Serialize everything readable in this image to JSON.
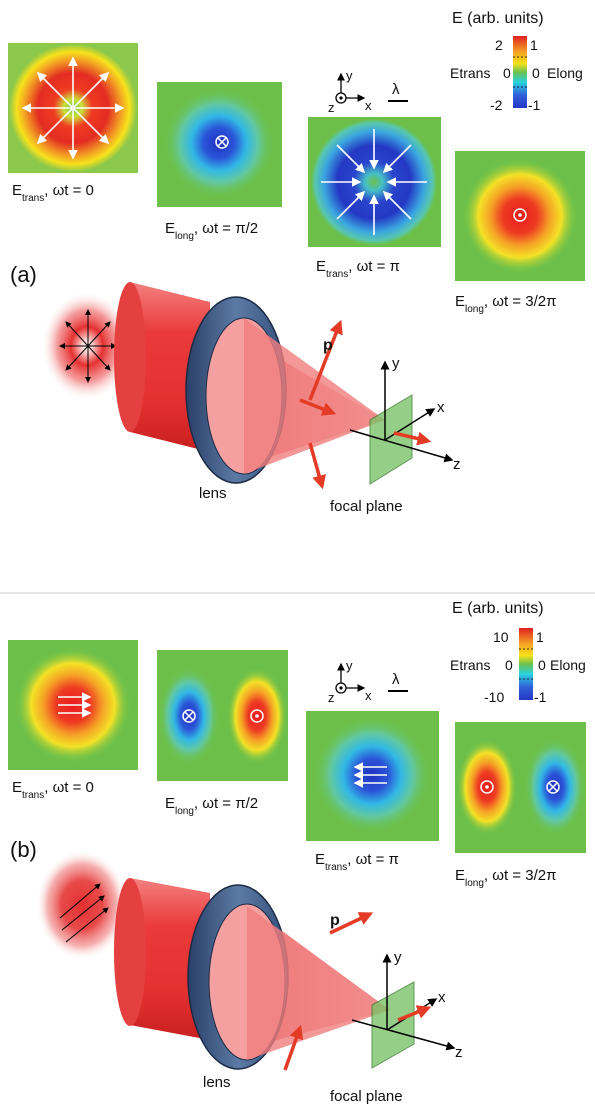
{
  "colors": {
    "red": "#e02020",
    "yellow": "#f7e21c",
    "green": "#6cc04a",
    "cyan": "#2ad3e0",
    "blue": "#2437c4",
    "beam": "#e53a3a",
    "lens": "#3e5a84",
    "plane": "#7bc46a",
    "arrow": "#e33b25"
  },
  "icons": {
    "into_page": "circle-x-icon",
    "out_of_page": "circle-dot-icon"
  },
  "panel_a": {
    "label": "(a)",
    "colorbar": {
      "title": "E (arb. units)",
      "left_label": "Etrans",
      "right_label": "Elong",
      "left_ticks": [
        "2",
        "0",
        "-2"
      ],
      "right_ticks": [
        "1",
        "0",
        "-1"
      ]
    },
    "wavelength_symbol": "λ",
    "axis_labels": {
      "y": "y",
      "x": "x",
      "z": "z"
    },
    "maps": [
      {
        "caption_main": "E",
        "caption_sub": "trans",
        "caption_rest": ", ωt = 0"
      },
      {
        "caption_main": "E",
        "caption_sub": "long",
        "caption_rest": ", ωt = π/2"
      },
      {
        "caption_main": "E",
        "caption_sub": "trans",
        "caption_rest": ", ωt = π"
      },
      {
        "caption_main": "E",
        "caption_sub": "long",
        "caption_rest": ", ωt = 3/2π"
      }
    ],
    "scene": {
      "lens_label": "lens",
      "focal_label": "focal plane",
      "p_label": "p",
      "x_label": "x",
      "y_label": "y",
      "z_label": "z"
    }
  },
  "panel_b": {
    "label": "(b)",
    "colorbar": {
      "title": "E (arb. units)",
      "left_label": "Etrans",
      "right_label": "Elong",
      "left_ticks": [
        "10",
        "0",
        "-10"
      ],
      "right_ticks": [
        "1",
        "0",
        "-1"
      ]
    },
    "wavelength_symbol": "λ",
    "axis_labels": {
      "y": "y",
      "x": "x",
      "z": "z"
    },
    "maps": [
      {
        "caption_main": "E",
        "caption_sub": "trans",
        "caption_rest": ", ωt = 0"
      },
      {
        "caption_main": "E",
        "caption_sub": "long",
        "caption_rest": ", ωt = π/2"
      },
      {
        "caption_main": "E",
        "caption_sub": "trans",
        "caption_rest": ", ωt = π"
      },
      {
        "caption_main": "E",
        "caption_sub": "long",
        "caption_rest": ", ωt = 3/2π"
      }
    ],
    "scene": {
      "lens_label": "lens",
      "focal_label": "focal plane",
      "p_label": "p",
      "x_label": "x",
      "y_label": "y",
      "z_label": "z"
    }
  }
}
